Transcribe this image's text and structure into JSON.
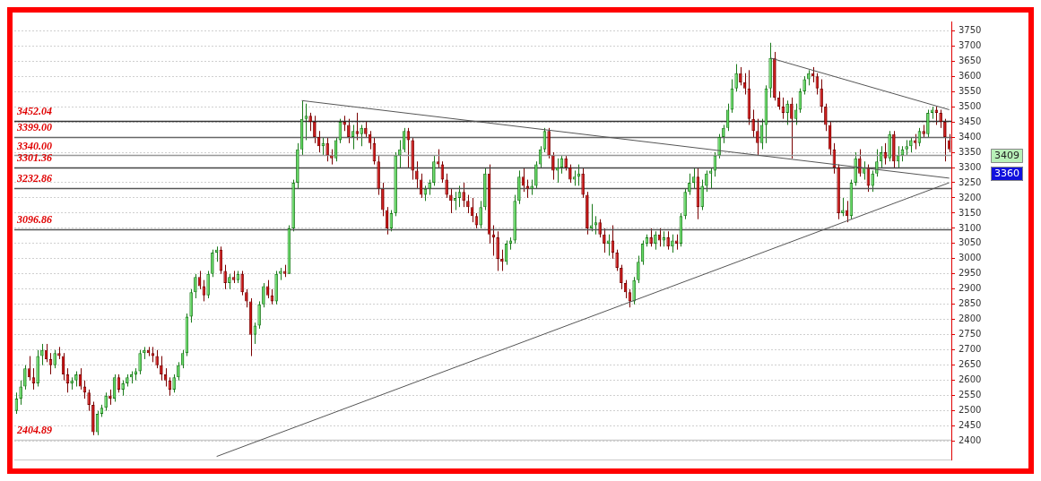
{
  "chart_data": {
    "type": "candlestick",
    "categories": [
      null,
      null,
      null,
      null,
      null,
      null,
      null,
      null,
      null,
      null,
      null,
      null,
      null,
      null,
      null,
      null,
      null,
      null,
      null,
      null,
      null,
      null,
      null,
      null,
      null,
      null,
      null,
      null,
      null,
      null,
      null,
      null,
      null,
      null,
      null,
      null,
      null,
      null,
      null,
      null,
      null,
      null,
      null,
      null,
      null,
      null,
      null,
      null,
      null,
      null,
      null,
      null,
      null,
      null,
      null,
      null,
      null,
      null,
      null,
      null,
      null,
      null,
      null,
      null,
      null,
      null,
      null,
      null,
      null,
      null,
      null,
      null,
      null,
      null,
      null,
      null,
      null,
      null,
      null,
      null,
      null,
      null,
      null,
      null,
      null,
      null,
      null,
      null,
      null,
      null,
      null,
      null,
      null,
      null,
      null,
      null,
      null,
      null,
      null,
      null,
      null,
      null,
      null,
      null,
      null,
      null,
      null,
      null,
      null,
      null,
      null,
      null,
      null,
      null,
      null,
      null,
      null,
      null,
      null,
      null,
      null,
      null,
      null,
      null,
      null,
      null,
      null,
      null,
      null,
      null,
      null,
      null,
      null,
      null,
      null,
      null,
      null,
      null,
      null,
      null,
      null,
      null,
      null,
      null,
      null,
      null,
      null,
      null,
      null,
      null,
      null,
      null,
      null,
      null,
      null,
      null,
      null,
      null,
      null,
      null,
      null,
      null,
      null,
      null,
      null,
      null,
      null,
      null,
      null,
      null,
      null,
      null,
      null,
      null,
      null,
      null,
      null,
      null,
      null,
      null,
      null,
      null,
      null,
      null,
      null,
      null,
      null,
      null,
      null,
      null,
      null,
      null,
      null,
      null,
      null,
      null,
      null,
      null,
      null,
      null,
      null,
      null,
      null,
      null,
      null,
      null,
      null,
      null,
      null,
      null,
      null,
      null,
      null,
      null,
      null,
      null,
      null,
      null,
      null,
      null
    ],
    "ohlc": [
      [
        2500,
        2560,
        2490,
        2540
      ],
      [
        2540,
        2600,
        2520,
        2580
      ],
      [
        2580,
        2650,
        2570,
        2640
      ],
      [
        2640,
        2680,
        2600,
        2610
      ],
      [
        2610,
        2640,
        2570,
        2590
      ],
      [
        2590,
        2700,
        2580,
        2680
      ],
      [
        2680,
        2720,
        2650,
        2700
      ],
      [
        2700,
        2720,
        2660,
        2670
      ],
      [
        2670,
        2690,
        2620,
        2650
      ],
      [
        2650,
        2700,
        2640,
        2690
      ],
      [
        2690,
        2710,
        2670,
        2680
      ],
      [
        2680,
        2690,
        2600,
        2620
      ],
      [
        2620,
        2640,
        2560,
        2590
      ],
      [
        2590,
        2610,
        2570,
        2600
      ],
      [
        2600,
        2630,
        2580,
        2620
      ],
      [
        2620,
        2640,
        2570,
        2580
      ],
      [
        2580,
        2600,
        2540,
        2560
      ],
      [
        2560,
        2570,
        2500,
        2520
      ],
      [
        2520,
        2530,
        2420,
        2430
      ],
      [
        2430,
        2500,
        2420,
        2490
      ],
      [
        2490,
        2520,
        2480,
        2510
      ],
      [
        2510,
        2560,
        2500,
        2550
      ],
      [
        2550,
        2570,
        2520,
        2540
      ],
      [
        2540,
        2620,
        2530,
        2610
      ],
      [
        2610,
        2620,
        2560,
        2570
      ],
      [
        2570,
        2600,
        2550,
        2590
      ],
      [
        2590,
        2620,
        2580,
        2610
      ],
      [
        2610,
        2630,
        2590,
        2620
      ],
      [
        2620,
        2640,
        2600,
        2630
      ],
      [
        2630,
        2700,
        2620,
        2690
      ],
      [
        2690,
        2710,
        2670,
        2700
      ],
      [
        2700,
        2710,
        2680,
        2690
      ],
      [
        2690,
        2710,
        2660,
        2680
      ],
      [
        2680,
        2700,
        2640,
        2650
      ],
      [
        2650,
        2680,
        2600,
        2620
      ],
      [
        2620,
        2640,
        2580,
        2600
      ],
      [
        2600,
        2610,
        2550,
        2570
      ],
      [
        2570,
        2620,
        2560,
        2610
      ],
      [
        2610,
        2660,
        2600,
        2650
      ],
      [
        2650,
        2700,
        2640,
        2690
      ],
      [
        2690,
        2820,
        2680,
        2810
      ],
      [
        2810,
        2900,
        2790,
        2890
      ],
      [
        2890,
        2950,
        2870,
        2940
      ],
      [
        2940,
        2960,
        2900,
        2910
      ],
      [
        2910,
        2930,
        2860,
        2880
      ],
      [
        2880,
        2960,
        2870,
        2950
      ],
      [
        2950,
        3030,
        2940,
        3020
      ],
      [
        3020,
        3040,
        2990,
        3030
      ],
      [
        3030,
        3040,
        2950,
        2960
      ],
      [
        2960,
        2980,
        2900,
        2920
      ],
      [
        2920,
        2950,
        2900,
        2940
      ],
      [
        2940,
        2960,
        2920,
        2930
      ],
      [
        2930,
        2960,
        2920,
        2950
      ],
      [
        2950,
        2960,
        2880,
        2890
      ],
      [
        2890,
        2900,
        2840,
        2860
      ],
      [
        2860,
        2870,
        2680,
        2750
      ],
      [
        2750,
        2790,
        2720,
        2780
      ],
      [
        2780,
        2860,
        2770,
        2850
      ],
      [
        2850,
        2920,
        2840,
        2910
      ],
      [
        2910,
        2930,
        2870,
        2880
      ],
      [
        2880,
        2900,
        2850,
        2860
      ],
      [
        2860,
        2960,
        2850,
        2950
      ],
      [
        2950,
        2970,
        2930,
        2960
      ],
      [
        2960,
        2980,
        2940,
        2950
      ],
      [
        2950,
        3110,
        2950,
        3100
      ],
      [
        3100,
        3260,
        3090,
        3250
      ],
      [
        3250,
        3380,
        3230,
        3360
      ],
      [
        3360,
        3520,
        3340,
        3460
      ],
      [
        3460,
        3510,
        3390,
        3470
      ],
      [
        3470,
        3480,
        3420,
        3450
      ],
      [
        3450,
        3470,
        3380,
        3400
      ],
      [
        3400,
        3420,
        3350,
        3370
      ],
      [
        3370,
        3400,
        3340,
        3380
      ],
      [
        3380,
        3400,
        3320,
        3340
      ],
      [
        3340,
        3360,
        3310,
        3330
      ],
      [
        3330,
        3400,
        3320,
        3390
      ],
      [
        3390,
        3460,
        3380,
        3450
      ],
      [
        3450,
        3470,
        3420,
        3440
      ],
      [
        3440,
        3460,
        3380,
        3400
      ],
      [
        3400,
        3440,
        3360,
        3420
      ],
      [
        3420,
        3480,
        3390,
        3410
      ],
      [
        3410,
        3440,
        3370,
        3430
      ],
      [
        3430,
        3450,
        3400,
        3410
      ],
      [
        3410,
        3420,
        3360,
        3380
      ],
      [
        3380,
        3400,
        3310,
        3320
      ],
      [
        3320,
        3340,
        3210,
        3230
      ],
      [
        3230,
        3250,
        3140,
        3160
      ],
      [
        3160,
        3170,
        3080,
        3100
      ],
      [
        3100,
        3160,
        3090,
        3150
      ],
      [
        3150,
        3350,
        3140,
        3340
      ],
      [
        3340,
        3390,
        3300,
        3360
      ],
      [
        3360,
        3430,
        3350,
        3420
      ],
      [
        3420,
        3430,
        3300,
        3390
      ],
      [
        3390,
        3400,
        3260,
        3290
      ],
      [
        3290,
        3320,
        3230,
        3260
      ],
      [
        3260,
        3280,
        3200,
        3210
      ],
      [
        3210,
        3240,
        3190,
        3230
      ],
      [
        3230,
        3260,
        3210,
        3250
      ],
      [
        3250,
        3340,
        3240,
        3320
      ],
      [
        3320,
        3360,
        3300,
        3310
      ],
      [
        3310,
        3320,
        3250,
        3260
      ],
      [
        3260,
        3280,
        3200,
        3210
      ],
      [
        3210,
        3230,
        3150,
        3190
      ],
      [
        3190,
        3220,
        3160,
        3200
      ],
      [
        3200,
        3240,
        3170,
        3220
      ],
      [
        3220,
        3250,
        3170,
        3190
      ],
      [
        3190,
        3210,
        3150,
        3170
      ],
      [
        3170,
        3200,
        3120,
        3140
      ],
      [
        3140,
        3150,
        3100,
        3110
      ],
      [
        3110,
        3190,
        3100,
        3170
      ],
      [
        3170,
        3300,
        3160,
        3280
      ],
      [
        3280,
        3310,
        3050,
        3080
      ],
      [
        3080,
        3110,
        3010,
        3070
      ],
      [
        3070,
        3090,
        2960,
        3000
      ],
      [
        3000,
        3030,
        2960,
        2990
      ],
      [
        2990,
        3060,
        2980,
        3050
      ],
      [
        3050,
        3070,
        3030,
        3060
      ],
      [
        3060,
        3210,
        3050,
        3190
      ],
      [
        3190,
        3290,
        3180,
        3270
      ],
      [
        3270,
        3300,
        3220,
        3240
      ],
      [
        3240,
        3260,
        3200,
        3230
      ],
      [
        3230,
        3260,
        3210,
        3240
      ],
      [
        3240,
        3320,
        3230,
        3310
      ],
      [
        3310,
        3370,
        3300,
        3360
      ],
      [
        3360,
        3430,
        3350,
        3420
      ],
      [
        3420,
        3430,
        3330,
        3340
      ],
      [
        3340,
        3350,
        3260,
        3290
      ],
      [
        3290,
        3330,
        3250,
        3300
      ],
      [
        3300,
        3340,
        3280,
        3330
      ],
      [
        3330,
        3340,
        3290,
        3300
      ],
      [
        3300,
        3310,
        3250,
        3260
      ],
      [
        3260,
        3290,
        3240,
        3270
      ],
      [
        3270,
        3310,
        3240,
        3280
      ],
      [
        3280,
        3300,
        3200,
        3210
      ],
      [
        3210,
        3220,
        3080,
        3100
      ],
      [
        3100,
        3180,
        3090,
        3110
      ],
      [
        3110,
        3140,
        3080,
        3120
      ],
      [
        3120,
        3130,
        3070,
        3080
      ],
      [
        3080,
        3100,
        3020,
        3050
      ],
      [
        3050,
        3080,
        3010,
        3060
      ],
      [
        3060,
        3110,
        3000,
        3020
      ],
      [
        3020,
        3030,
        2960,
        2970
      ],
      [
        2970,
        2980,
        2900,
        2920
      ],
      [
        2920,
        2930,
        2870,
        2890
      ],
      [
        2890,
        2900,
        2840,
        2860
      ],
      [
        2860,
        2940,
        2850,
        2930
      ],
      [
        2930,
        3010,
        2920,
        2990
      ],
      [
        2990,
        3060,
        2980,
        3050
      ],
      [
        3050,
        3080,
        3040,
        3070
      ],
      [
        3070,
        3100,
        3040,
        3050
      ],
      [
        3050,
        3090,
        3030,
        3080
      ],
      [
        3080,
        3100,
        3040,
        3060
      ],
      [
        3060,
        3090,
        3040,
        3070
      ],
      [
        3070,
        3090,
        3030,
        3040
      ],
      [
        3040,
        3080,
        3020,
        3060
      ],
      [
        3060,
        3080,
        3030,
        3050
      ],
      [
        3050,
        3150,
        3040,
        3140
      ],
      [
        3140,
        3230,
        3130,
        3220
      ],
      [
        3220,
        3280,
        3210,
        3250
      ],
      [
        3250,
        3300,
        3230,
        3270
      ],
      [
        3270,
        3300,
        3130,
        3170
      ],
      [
        3170,
        3260,
        3160,
        3240
      ],
      [
        3240,
        3290,
        3220,
        3280
      ],
      [
        3280,
        3300,
        3230,
        3290
      ],
      [
        3290,
        3350,
        3270,
        3340
      ],
      [
        3340,
        3410,
        3330,
        3400
      ],
      [
        3400,
        3440,
        3380,
        3430
      ],
      [
        3430,
        3510,
        3420,
        3490
      ],
      [
        3490,
        3590,
        3480,
        3560
      ],
      [
        3560,
        3640,
        3550,
        3610
      ],
      [
        3610,
        3630,
        3570,
        3580
      ],
      [
        3580,
        3610,
        3540,
        3560
      ],
      [
        3560,
        3620,
        3440,
        3460
      ],
      [
        3460,
        3490,
        3400,
        3420
      ],
      [
        3420,
        3460,
        3340,
        3380
      ],
      [
        3380,
        3460,
        3360,
        3440
      ],
      [
        3440,
        3570,
        3380,
        3560
      ],
      [
        3560,
        3710,
        3530,
        3660
      ],
      [
        3660,
        3680,
        3520,
        3530
      ],
      [
        3530,
        3550,
        3490,
        3500
      ],
      [
        3500,
        3530,
        3460,
        3480
      ],
      [
        3480,
        3520,
        3440,
        3510
      ],
      [
        3510,
        3530,
        3330,
        3460
      ],
      [
        3460,
        3510,
        3440,
        3490
      ],
      [
        3490,
        3560,
        3480,
        3550
      ],
      [
        3550,
        3600,
        3540,
        3590
      ],
      [
        3590,
        3620,
        3570,
        3610
      ],
      [
        3610,
        3630,
        3580,
        3600
      ],
      [
        3600,
        3610,
        3540,
        3560
      ],
      [
        3560,
        3590,
        3480,
        3500
      ],
      [
        3500,
        3510,
        3420,
        3440
      ],
      [
        3440,
        3450,
        3340,
        3360
      ],
      [
        3360,
        3380,
        3280,
        3300
      ],
      [
        3300,
        3310,
        3130,
        3150
      ],
      [
        3150,
        3200,
        3140,
        3160
      ],
      [
        3160,
        3190,
        3120,
        3140
      ],
      [
        3140,
        3260,
        3130,
        3250
      ],
      [
        3250,
        3350,
        3240,
        3330
      ],
      [
        3330,
        3360,
        3270,
        3280
      ],
      [
        3280,
        3320,
        3260,
        3300
      ],
      [
        3300,
        3310,
        3220,
        3240
      ],
      [
        3240,
        3290,
        3220,
        3280
      ],
      [
        3280,
        3360,
        3270,
        3320
      ],
      [
        3320,
        3370,
        3300,
        3350
      ],
      [
        3350,
        3380,
        3310,
        3330
      ],
      [
        3330,
        3420,
        3320,
        3410
      ],
      [
        3410,
        3420,
        3300,
        3320
      ],
      [
        3320,
        3370,
        3300,
        3340
      ],
      [
        3340,
        3370,
        3320,
        3360
      ],
      [
        3360,
        3390,
        3340,
        3370
      ],
      [
        3370,
        3400,
        3350,
        3390
      ],
      [
        3390,
        3410,
        3360,
        3380
      ],
      [
        3380,
        3430,
        3370,
        3420
      ],
      [
        3420,
        3440,
        3400,
        3410
      ],
      [
        3410,
        3490,
        3400,
        3480
      ],
      [
        3480,
        3500,
        3460,
        3490
      ],
      [
        3490,
        3500,
        3440,
        3480
      ],
      [
        3480,
        3490,
        3430,
        3450
      ],
      [
        3450,
        3460,
        3320,
        3400
      ],
      [
        3390,
        3410,
        3350,
        3360
      ]
    ],
    "series": [
      {
        "type": "line",
        "color": "#555555",
        "values": [
          null,
          null,
          null,
          null,
          null,
          null,
          null,
          null,
          null,
          null,
          null,
          null,
          null,
          null,
          null,
          null,
          null,
          null,
          null,
          null,
          null,
          null,
          null,
          null,
          null,
          null,
          null,
          null,
          null,
          null,
          null,
          null,
          null,
          null,
          null,
          null,
          null,
          null,
          null,
          null,
          null,
          null,
          null,
          null,
          null,
          null,
          null,
          null,
          null,
          null,
          null,
          null,
          null,
          null,
          null,
          null,
          null,
          null,
          null,
          null,
          null,
          null,
          null,
          null,
          null,
          null,
          null,
          3520,
          null,
          null,
          null,
          null,
          null,
          null,
          null,
          null,
          null,
          null,
          null,
          null,
          null,
          null,
          null,
          null,
          null,
          null,
          null,
          null,
          null,
          null,
          null,
          null,
          null,
          null,
          null,
          null,
          null,
          null,
          null,
          null,
          null,
          null,
          null,
          null,
          null,
          null,
          null,
          null,
          null,
          null,
          null,
          null,
          null,
          null,
          null,
          null,
          null,
          null,
          null,
          null,
          null,
          null,
          null,
          null,
          null,
          null,
          null,
          null,
          null,
          null,
          null,
          null,
          null,
          null,
          null,
          null,
          null,
          null,
          null,
          null,
          null,
          null,
          null,
          null,
          null,
          null,
          null,
          null,
          null,
          null,
          null,
          null,
          null,
          null,
          null,
          null,
          null,
          null,
          null,
          null,
          null,
          null,
          null,
          null,
          null,
          null,
          null,
          null,
          null,
          null,
          null,
          null,
          null,
          null,
          null,
          null,
          null,
          null,
          null,
          null,
          null,
          null,
          null,
          null,
          null,
          null,
          null,
          null,
          null,
          null,
          null,
          null,
          null,
          null,
          null,
          null,
          null,
          null,
          null,
          null,
          null,
          null,
          null,
          null,
          null,
          null,
          null,
          null,
          null,
          null,
          null,
          null,
          null,
          null,
          null,
          null,
          null,
          null,
          null,
          3265
        ]
      },
      {
        "type": "line",
        "color": "#555555",
        "values": [
          null,
          null,
          null,
          null,
          null,
          null,
          null,
          null,
          null,
          null,
          null,
          null,
          null,
          null,
          null,
          null,
          null,
          null,
          null,
          null,
          null,
          null,
          null,
          null,
          null,
          null,
          null,
          null,
          null,
          null,
          null,
          null,
          null,
          null,
          null,
          null,
          null,
          null,
          null,
          null,
          null,
          null,
          null,
          null,
          null,
          null,
          null,
          null,
          null,
          null,
          null,
          null,
          null,
          null,
          null,
          null,
          null,
          null,
          null,
          null,
          null,
          null,
          null,
          null,
          null,
          null,
          null,
          null,
          null,
          null,
          null,
          null,
          null,
          null,
          null,
          null,
          null,
          null,
          null,
          null,
          null,
          null,
          null,
          null,
          null,
          null,
          null,
          null,
          null,
          null,
          null,
          null,
          null,
          null,
          null,
          null,
          null,
          null,
          null,
          null,
          null,
          null,
          null,
          null,
          null,
          null,
          null,
          null,
          null,
          null,
          null,
          null,
          null,
          null,
          null,
          null,
          null,
          null,
          null,
          null,
          null,
          null,
          null,
          null,
          null,
          null,
          null,
          null,
          null,
          null,
          null,
          null,
          null,
          null,
          null,
          null,
          null,
          null,
          null,
          null,
          null,
          null,
          null,
          null,
          null,
          null,
          null,
          null,
          null,
          null,
          null,
          null,
          null,
          null,
          null,
          null,
          null,
          null,
          null,
          null,
          null,
          null,
          null,
          null,
          null,
          null,
          null,
          null,
          null,
          null,
          null,
          null,
          null,
          null,
          null,
          null,
          null,
          3660,
          null,
          null,
          null,
          null,
          null,
          null,
          null,
          null,
          null,
          null,
          null,
          null,
          null,
          null,
          null,
          null,
          null,
          null,
          null,
          null,
          null,
          null,
          null,
          null,
          null,
          null,
          null,
          null,
          null,
          null,
          null,
          null,
          null,
          null,
          null,
          null,
          null,
          null,
          null,
          null,
          null,
          3490
        ]
      },
      {
        "type": "line",
        "color": "#555555",
        "values": [
          null,
          null,
          null,
          null,
          null,
          null,
          null,
          null,
          null,
          null,
          null,
          null,
          null,
          null,
          null,
          null,
          null,
          null,
          null,
          null,
          null,
          null,
          null,
          null,
          null,
          null,
          null,
          null,
          null,
          null,
          null,
          null,
          null,
          null,
          null,
          null,
          null,
          null,
          null,
          null,
          null,
          null,
          null,
          null,
          null,
          null,
          null,
          2350,
          null,
          null,
          null,
          null,
          null,
          null,
          null,
          null,
          null,
          null,
          null,
          null,
          null,
          null,
          null,
          null,
          null,
          null,
          null,
          null,
          null,
          null,
          null,
          null,
          null,
          null,
          null,
          null,
          null,
          null,
          null,
          null,
          null,
          null,
          null,
          null,
          null,
          null,
          null,
          null,
          null,
          null,
          null,
          null,
          null,
          null,
          null,
          null,
          null,
          null,
          null,
          null,
          null,
          null,
          null,
          null,
          null,
          null,
          null,
          null,
          null,
          null,
          null,
          null,
          null,
          null,
          null,
          null,
          null,
          null,
          null,
          null,
          null,
          null,
          null,
          null,
          null,
          null,
          null,
          null,
          null,
          null,
          null,
          null,
          null,
          null,
          null,
          null,
          null,
          null,
          null,
          null,
          null,
          null,
          null,
          null,
          null,
          null,
          null,
          null,
          null,
          null,
          null,
          null,
          null,
          null,
          null,
          null,
          null,
          null,
          null,
          null,
          null,
          null,
          null,
          null,
          null,
          null,
          null,
          null,
          null,
          null,
          null,
          null,
          null,
          null,
          null,
          null,
          null,
          null,
          null,
          null,
          null,
          null,
          null,
          null,
          null,
          null,
          null,
          null,
          null,
          null,
          null,
          null,
          null,
          null,
          null,
          null,
          null,
          null,
          null,
          null,
          null,
          null,
          null,
          null,
          null,
          null,
          null,
          null,
          null,
          null,
          null,
          null,
          null,
          null,
          null,
          null,
          null,
          null,
          null,
          3250
        ]
      }
    ],
    "ylim": [
      2340,
      3780
    ],
    "yticks": [
      2400,
      2450,
      2500,
      2550,
      2600,
      2650,
      2700,
      2750,
      2800,
      2850,
      2900,
      2950,
      3000,
      3050,
      3100,
      3150,
      3200,
      3250,
      3300,
      3350,
      3400,
      3450,
      3500,
      3550,
      3600,
      3650,
      3700,
      3750
    ],
    "ref_lines": [
      {
        "axis": "y",
        "value": 3452.04,
        "label": "3452.04",
        "color": "#333333"
      },
      {
        "axis": "y",
        "value": 3399.0,
        "label": "3399.00",
        "color": "#666666"
      },
      {
        "axis": "y",
        "value": 3340.0,
        "label": "3340.00",
        "color": "#999999"
      },
      {
        "axis": "y",
        "value": 3301.36,
        "label": "3301.36",
        "color": "#444444"
      },
      {
        "axis": "y",
        "value": 3232.86,
        "label": "3232.86",
        "color": "#555555"
      },
      {
        "axis": "y",
        "value": 3096.86,
        "label": "3096.86",
        "color": "#555555"
      },
      {
        "axis": "y",
        "value": 2404.89,
        "label": "2404.89",
        "color": "#cccccc"
      }
    ],
    "annotations": [
      "3409",
      "3360"
    ],
    "grid": "y",
    "legend": false,
    "tick_labels": "y"
  }
}
